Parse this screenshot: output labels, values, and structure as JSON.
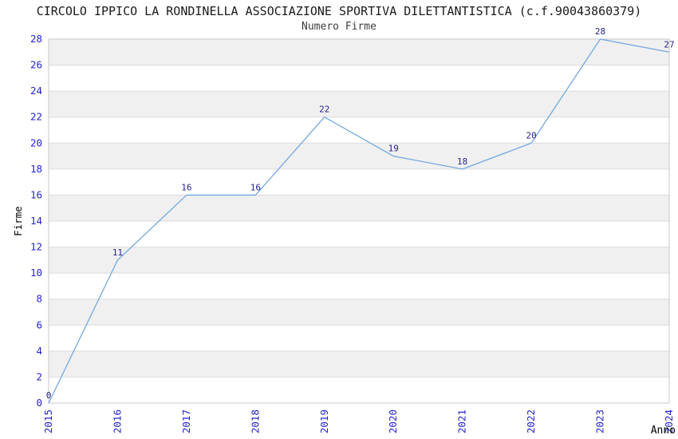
{
  "chart_data": {
    "type": "line",
    "title": "CIRCOLO IPPICO LA RONDINELLA ASSOCIAZIONE SPORTIVA DILETTANTISTICA (c.f.90043860379)",
    "subtitle": "Numero Firme",
    "xlabel": "Anno",
    "ylabel": "Firme",
    "categories": [
      "2015",
      "2016",
      "2017",
      "2018",
      "2019",
      "2020",
      "2021",
      "2022",
      "2023",
      "2024"
    ],
    "values": [
      0,
      11,
      16,
      16,
      22,
      19,
      18,
      20,
      28,
      27
    ],
    "ylim": [
      0,
      28
    ],
    "ytick_step": 2,
    "xtick_rotation": 90,
    "grid": "horizontal-lines-with-alternating-bands",
    "legend": "none",
    "markers": "none",
    "point_labels": [
      "0",
      "11",
      "16",
      "16",
      "22",
      "19",
      "18",
      "20",
      "28",
      "27"
    ],
    "colors": {
      "line": "#74A8E0",
      "tick_labels": "#2424CC",
      "point_labels": "#24248C",
      "band_fill": "#F0F0F0",
      "gridline": "#DCDCDC",
      "plot_border": "#C8C8C8",
      "title_text": "#1A1A1A",
      "subtitle_text": "#3D3D3D",
      "axis_title_text": "#000000",
      "background": "#FFFFFF"
    }
  }
}
